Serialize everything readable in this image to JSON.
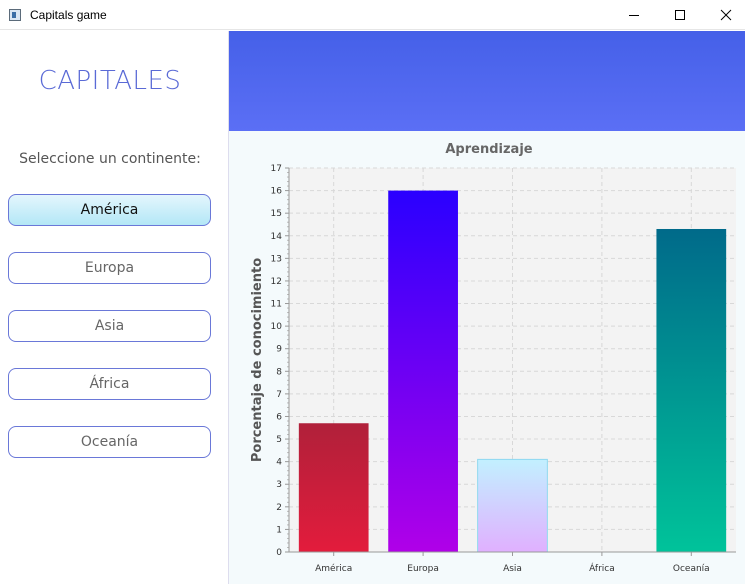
{
  "window": {
    "title": "Capitals game"
  },
  "sidebar": {
    "title": "CAPITALES",
    "prompt": "Seleccione un continente:",
    "buttons": [
      {
        "label": "América",
        "selected": true
      },
      {
        "label": "Europa",
        "selected": false
      },
      {
        "label": "Asia",
        "selected": false
      },
      {
        "label": "África",
        "selected": false
      },
      {
        "label": "Oceanía",
        "selected": false
      }
    ]
  },
  "colors": {
    "accent": "#5a6ad6",
    "banner": "#4f66ee"
  },
  "chart_data": {
    "type": "bar",
    "title": "Aprendizaje",
    "xlabel": "",
    "ylabel": "Porcentaje de conocimiento",
    "categories": [
      "América",
      "Europa",
      "Asia",
      "África",
      "Oceanía"
    ],
    "values": [
      5.7,
      16.0,
      4.1,
      0,
      14.3
    ],
    "ylim": [
      0,
      17
    ],
    "yticks": [
      0,
      1,
      2,
      3,
      4,
      5,
      6,
      7,
      8,
      9,
      10,
      11,
      12,
      13,
      14,
      15,
      16,
      17
    ],
    "grid": true,
    "legend": "none",
    "bar_gradients": [
      {
        "top": "#b0203a",
        "bottom": "#e31c3c"
      },
      {
        "top": "#2a00ff",
        "bottom": "#b000e8"
      },
      {
        "top": "#c2f0ff",
        "bottom": "#e0b0ff"
      },
      {
        "top": "#000000",
        "bottom": "#000000"
      },
      {
        "top": "#006a8a",
        "bottom": "#00c39a"
      }
    ]
  }
}
